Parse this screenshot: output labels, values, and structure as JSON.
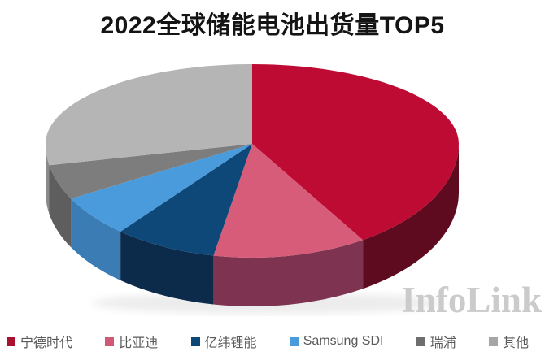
{
  "title": "2022全球储能电池出货量TOP5",
  "watermark": "InfoLink",
  "chart_data": {
    "type": "pie",
    "style": "pie-3d",
    "title": "2022全球储能电池出货量TOP5",
    "unit": "%",
    "start_angle_deg": 90,
    "clockwise": true,
    "legend_position": "bottom",
    "values_labeled_on_chart": false,
    "values_are_estimates": true,
    "series": [
      {
        "name": "宁德时代",
        "value": 41,
        "color": "#BE0B33",
        "side_color": "#5E0B1F",
        "swatch": "#A81230"
      },
      {
        "name": "比亚迪",
        "value": 12,
        "color": "#D65C7A",
        "side_color": "#7E3450",
        "swatch": "#D05A76"
      },
      {
        "name": "亿纬锂能",
        "value": 8,
        "color": "#0E4878",
        "side_color": "#0C2B4B",
        "swatch": "#0E4876"
      },
      {
        "name": "Samsung SDI",
        "value": 6,
        "color": "#4A9BDB",
        "side_color": "#3B7CB5",
        "swatch": "#4A9BDB"
      },
      {
        "name": "瑞浦",
        "value": 5,
        "color": "#7D7D7D",
        "side_color": "#5E5E5E",
        "swatch": "#6E6E6E"
      },
      {
        "name": "其他",
        "value": 28,
        "color": "#B5B5B5",
        "side_color": "#8A8A8A",
        "swatch": "#A6A6A6"
      }
    ]
  }
}
